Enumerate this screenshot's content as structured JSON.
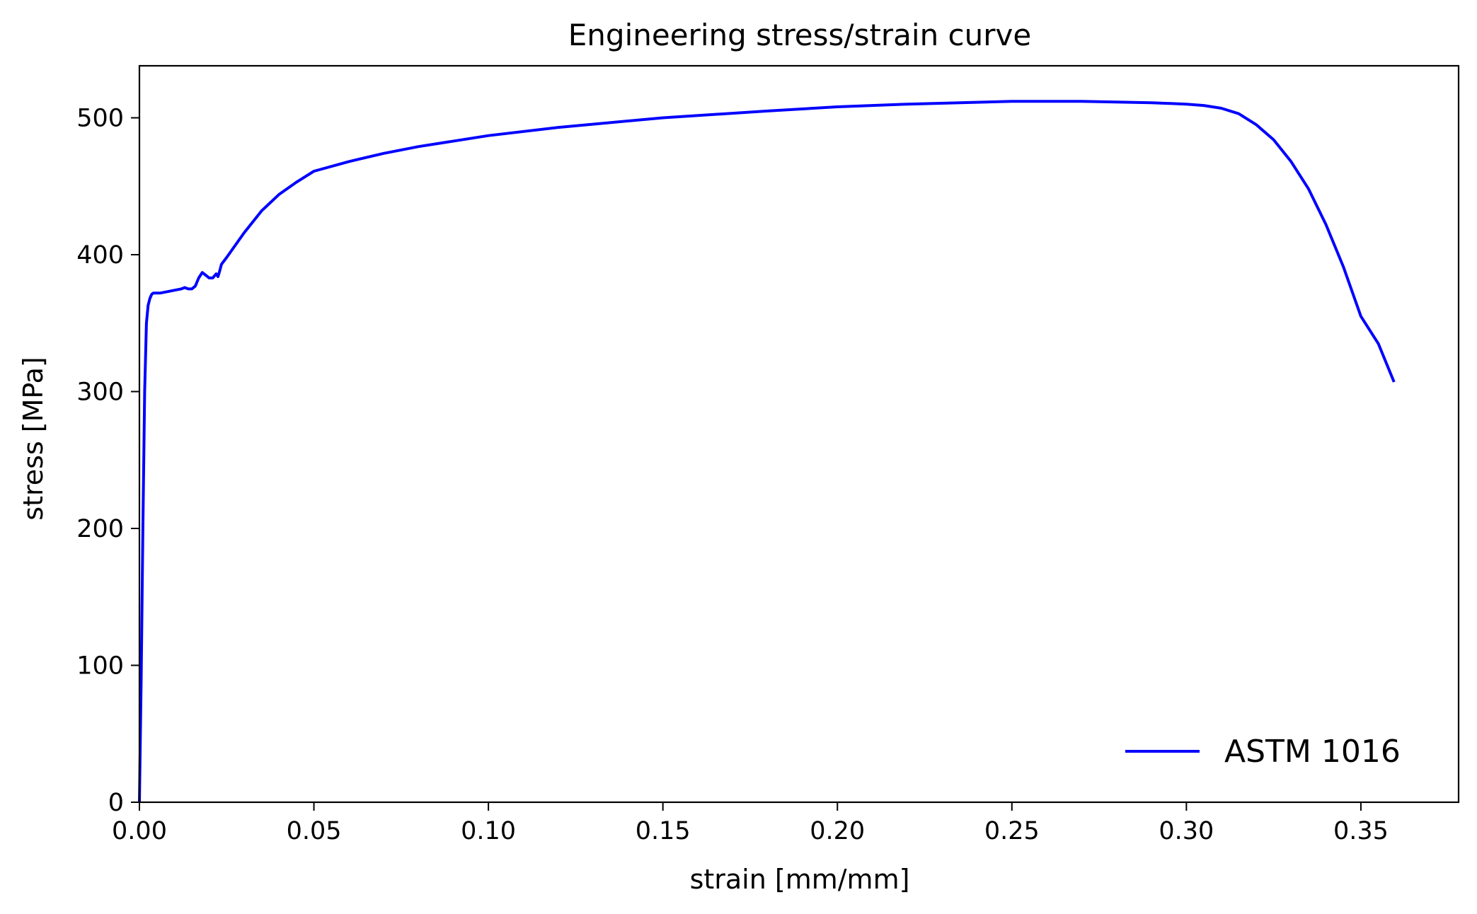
{
  "chart_data": {
    "type": "line",
    "title": "Engineering stress/strain curve",
    "xlabel": "strain [mm/mm]",
    "ylabel": "stress [MPa]",
    "xlim": [
      0.0,
      0.378
    ],
    "ylim": [
      0,
      538
    ],
    "xticks": [
      0.0,
      0.05,
      0.1,
      0.15,
      0.2,
      0.25,
      0.3,
      0.35
    ],
    "xtick_labels": [
      "0.00",
      "0.05",
      "0.10",
      "0.15",
      "0.20",
      "0.25",
      "0.30",
      "0.35"
    ],
    "yticks": [
      0,
      100,
      200,
      300,
      400,
      500
    ],
    "ytick_labels": [
      "0",
      "100",
      "200",
      "300",
      "400",
      "500"
    ],
    "grid": false,
    "legend_position": "bottom-right",
    "series_color": "#0000ff",
    "series": [
      {
        "name": "ASTM 1016",
        "x": [
          0.0,
          0.0005,
          0.001,
          0.0015,
          0.002,
          0.0025,
          0.003,
          0.0035,
          0.004,
          0.005,
          0.006,
          0.008,
          0.01,
          0.012,
          0.013,
          0.014,
          0.015,
          0.016,
          0.017,
          0.018,
          0.019,
          0.02,
          0.021,
          0.022,
          0.0225,
          0.023,
          0.0235,
          0.025,
          0.03,
          0.035,
          0.04,
          0.045,
          0.05,
          0.06,
          0.07,
          0.08,
          0.1,
          0.12,
          0.15,
          0.18,
          0.2,
          0.22,
          0.25,
          0.27,
          0.29,
          0.3,
          0.305,
          0.31,
          0.315,
          0.32,
          0.325,
          0.33,
          0.335,
          0.34,
          0.345,
          0.35,
          0.355,
          0.3595
        ],
        "y": [
          0,
          90,
          200,
          300,
          350,
          363,
          368,
          371,
          372,
          372,
          372,
          373,
          374,
          375,
          376,
          375,
          375,
          377,
          383,
          387,
          385,
          383,
          383,
          386,
          384,
          388,
          393,
          398,
          416,
          432,
          444,
          453,
          461,
          468,
          474,
          479,
          487,
          493,
          500,
          505,
          508,
          510,
          512,
          512,
          511,
          510,
          509,
          507,
          503,
          495,
          484,
          468,
          448,
          422,
          391,
          355,
          335,
          307
        ]
      }
    ]
  }
}
